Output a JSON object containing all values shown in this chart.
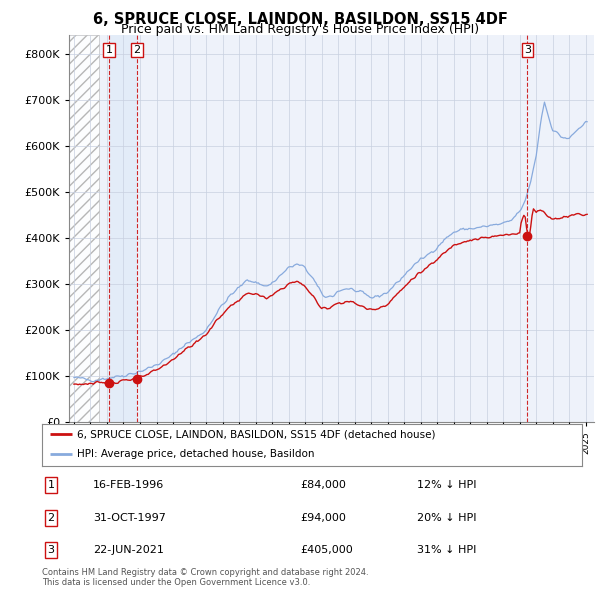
{
  "title": "6, SPRUCE CLOSE, LAINDON, BASILDON, SS15 4DF",
  "subtitle": "Price paid vs. HM Land Registry's House Price Index (HPI)",
  "title_fontsize": 11,
  "subtitle_fontsize": 9,
  "ylabel_ticks": [
    "£0",
    "£100K",
    "£200K",
    "£300K",
    "£400K",
    "£500K",
    "£600K",
    "£700K",
    "£800K"
  ],
  "ytick_values": [
    0,
    100000,
    200000,
    300000,
    400000,
    500000,
    600000,
    700000,
    800000
  ],
  "ylim": [
    0,
    840000
  ],
  "xlim_start": 1993.7,
  "xlim_end": 2025.5,
  "background_color": "#ffffff",
  "plot_bg_color": "#eef2fa",
  "grid_color": "#c8d0e0",
  "hatch_color": "#d8dce8",
  "sale_color": "#cc1111",
  "hpi_color": "#88aadd",
  "highlight_color": "#dce8f8",
  "sale_label": "6, SPRUCE CLOSE, LAINDON, BASILDON, SS15 4DF (detached house)",
  "hpi_label": "HPI: Average price, detached house, Basildon",
  "transactions": [
    {
      "num": 1,
      "date_label": "16-FEB-1996",
      "x": 1996.12,
      "price": 84000,
      "hpi_pct": "12% ↓ HPI"
    },
    {
      "num": 2,
      "date_label": "31-OCT-1997",
      "x": 1997.83,
      "price": 94000,
      "hpi_pct": "20% ↓ HPI"
    },
    {
      "num": 3,
      "date_label": "22-JUN-2021",
      "x": 2021.47,
      "price": 405000,
      "hpi_pct": "31% ↓ HPI"
    }
  ],
  "copyright_text": "Contains HM Land Registry data © Crown copyright and database right 2024.\nThis data is licensed under the Open Government Licence v3.0."
}
